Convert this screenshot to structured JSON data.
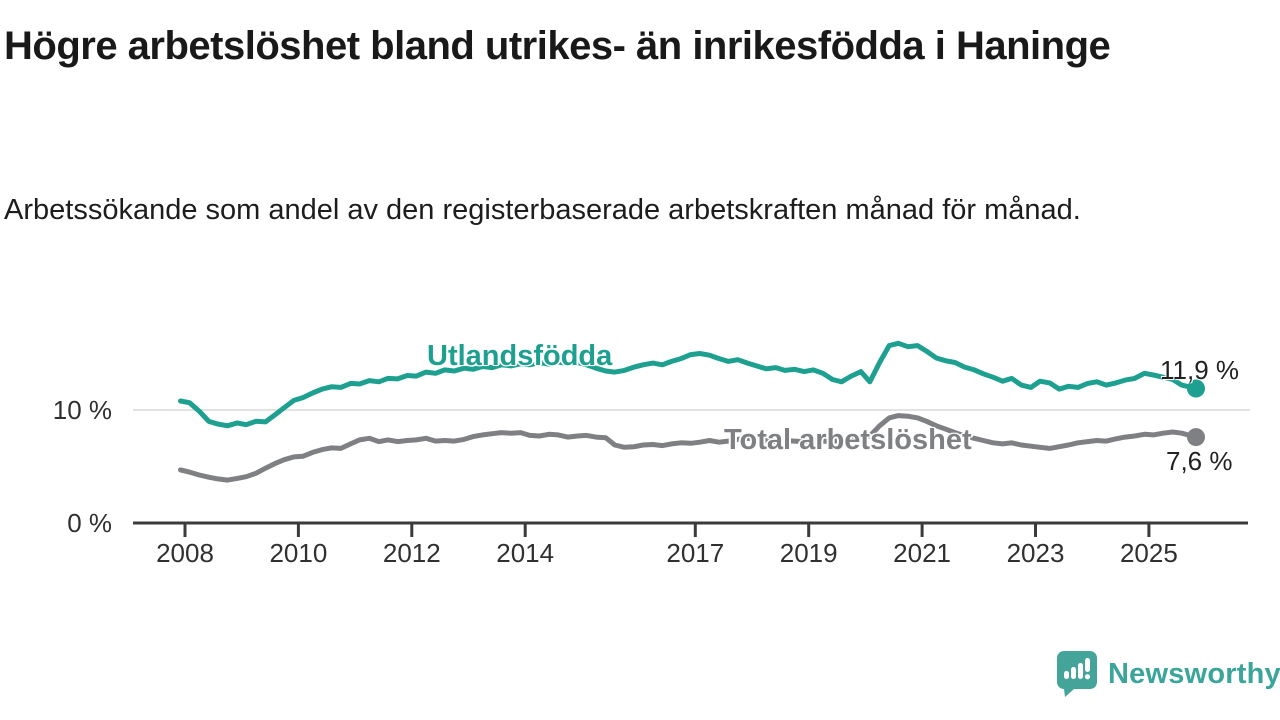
{
  "header": {
    "title": "Högre arbetslöshet bland utrikes- än inrikesfödda i Haninge",
    "subtitle": "Arbetssökande som andel av den registerbaserade arbetskraften månad för månad."
  },
  "branding": {
    "logo_text": "Newsworthy",
    "logo_color": "#3ba59b",
    "logo_bubble_color": "#45a49a",
    "logo_icon": "newsworthy-speech-bubble-bar-chart-icon"
  },
  "colors": {
    "background": "#ffffff",
    "accent_teal": "#1ea091",
    "neutral_gray": "#7f8084",
    "axis": "#3b3b3b",
    "grid": "#d9d9d9",
    "tick_text": "#303030"
  },
  "chart_data": {
    "type": "line",
    "title": "Högre arbetslöshet bland utrikes- än inrikesfödda i Haninge",
    "subtitle": "Arbetssökande som andel av den registerbaserade arbetskraften månad för månad.",
    "unit": "%",
    "grid": "single horizontal gridline at 10 %",
    "legend_position": "inline labels on lines, value labels at line ends",
    "x_axis": {
      "range": [
        2007.7,
        2026.9
      ],
      "ticks": [
        {
          "t": 2008,
          "label": "2008"
        },
        {
          "t": 2010,
          "label": "2010"
        },
        {
          "t": 2012,
          "label": "2012"
        },
        {
          "t": 2014,
          "label": "2014"
        },
        {
          "t": 2017,
          "label": "2017"
        },
        {
          "t": 2019,
          "label": "2019"
        },
        {
          "t": 2021,
          "label": "2021"
        },
        {
          "t": 2023,
          "label": "2023"
        },
        {
          "t": 2025,
          "label": "2025"
        }
      ]
    },
    "y_axis": {
      "range": [
        0,
        18
      ],
      "ticks": [
        {
          "v": 0,
          "label": "0 %"
        },
        {
          "v": 10,
          "label": "10 %"
        }
      ]
    },
    "series": [
      {
        "name": "Utlandsfödda",
        "color": "#1ea091",
        "end_label": "11,9 %",
        "end_value": 11.9,
        "points": [
          [
            2007.92,
            10.8
          ],
          [
            2008.08,
            10.65
          ],
          [
            2008.25,
            9.9
          ],
          [
            2008.42,
            9.0
          ],
          [
            2008.58,
            8.75
          ],
          [
            2008.75,
            8.6
          ],
          [
            2008.92,
            8.85
          ],
          [
            2009.08,
            8.7
          ],
          [
            2009.25,
            9.0
          ],
          [
            2009.42,
            8.95
          ],
          [
            2009.58,
            9.55
          ],
          [
            2009.75,
            10.2
          ],
          [
            2009.92,
            10.85
          ],
          [
            2010.08,
            11.1
          ],
          [
            2010.25,
            11.5
          ],
          [
            2010.42,
            11.85
          ],
          [
            2010.58,
            12.05
          ],
          [
            2010.75,
            12.0
          ],
          [
            2010.92,
            12.35
          ],
          [
            2011.08,
            12.3
          ],
          [
            2011.25,
            12.6
          ],
          [
            2011.42,
            12.5
          ],
          [
            2011.58,
            12.8
          ],
          [
            2011.75,
            12.75
          ],
          [
            2011.92,
            13.05
          ],
          [
            2012.08,
            13.0
          ],
          [
            2012.25,
            13.35
          ],
          [
            2012.42,
            13.25
          ],
          [
            2012.58,
            13.55
          ],
          [
            2012.75,
            13.45
          ],
          [
            2012.92,
            13.7
          ],
          [
            2013.08,
            13.6
          ],
          [
            2013.25,
            13.85
          ],
          [
            2013.42,
            13.75
          ],
          [
            2013.58,
            14.0
          ],
          [
            2013.75,
            13.9
          ],
          [
            2013.92,
            14.1
          ],
          [
            2014.08,
            14.0
          ],
          [
            2014.25,
            14.2
          ],
          [
            2014.42,
            14.05
          ],
          [
            2014.58,
            14.25
          ],
          [
            2014.75,
            14.1
          ],
          [
            2014.92,
            14.2
          ],
          [
            2015.08,
            14.0
          ],
          [
            2015.25,
            13.7
          ],
          [
            2015.42,
            13.45
          ],
          [
            2015.58,
            13.35
          ],
          [
            2015.75,
            13.5
          ],
          [
            2015.92,
            13.8
          ],
          [
            2016.08,
            14.0
          ],
          [
            2016.25,
            14.15
          ],
          [
            2016.42,
            14.0
          ],
          [
            2016.58,
            14.3
          ],
          [
            2016.75,
            14.55
          ],
          [
            2016.92,
            14.9
          ],
          [
            2017.08,
            15.0
          ],
          [
            2017.25,
            14.85
          ],
          [
            2017.42,
            14.55
          ],
          [
            2017.58,
            14.3
          ],
          [
            2017.75,
            14.45
          ],
          [
            2017.92,
            14.15
          ],
          [
            2018.08,
            13.9
          ],
          [
            2018.25,
            13.65
          ],
          [
            2018.42,
            13.75
          ],
          [
            2018.58,
            13.5
          ],
          [
            2018.75,
            13.6
          ],
          [
            2018.92,
            13.4
          ],
          [
            2019.08,
            13.55
          ],
          [
            2019.25,
            13.25
          ],
          [
            2019.42,
            12.7
          ],
          [
            2019.58,
            12.5
          ],
          [
            2019.75,
            13.0
          ],
          [
            2019.92,
            13.4
          ],
          [
            2020.08,
            12.5
          ],
          [
            2020.25,
            14.2
          ],
          [
            2020.42,
            15.7
          ],
          [
            2020.58,
            15.9
          ],
          [
            2020.75,
            15.6
          ],
          [
            2020.92,
            15.7
          ],
          [
            2021.08,
            15.2
          ],
          [
            2021.25,
            14.6
          ],
          [
            2021.42,
            14.35
          ],
          [
            2021.58,
            14.2
          ],
          [
            2021.75,
            13.8
          ],
          [
            2021.92,
            13.55
          ],
          [
            2022.08,
            13.2
          ],
          [
            2022.25,
            12.9
          ],
          [
            2022.42,
            12.55
          ],
          [
            2022.58,
            12.8
          ],
          [
            2022.75,
            12.2
          ],
          [
            2022.92,
            12.0
          ],
          [
            2023.08,
            12.55
          ],
          [
            2023.25,
            12.4
          ],
          [
            2023.42,
            11.85
          ],
          [
            2023.58,
            12.1
          ],
          [
            2023.75,
            12.0
          ],
          [
            2023.92,
            12.35
          ],
          [
            2024.08,
            12.5
          ],
          [
            2024.25,
            12.2
          ],
          [
            2024.42,
            12.4
          ],
          [
            2024.58,
            12.65
          ],
          [
            2024.75,
            12.8
          ],
          [
            2024.92,
            13.25
          ],
          [
            2025.08,
            13.1
          ],
          [
            2025.25,
            12.9
          ],
          [
            2025.42,
            12.7
          ],
          [
            2025.58,
            12.2
          ],
          [
            2025.83,
            11.9
          ]
        ]
      },
      {
        "name": "Total arbetslöshet",
        "color": "#7f8084",
        "end_label": "7,6 %",
        "end_value": 7.6,
        "points": [
          [
            2007.92,
            4.7
          ],
          [
            2008.08,
            4.5
          ],
          [
            2008.25,
            4.25
          ],
          [
            2008.42,
            4.05
          ],
          [
            2008.58,
            3.9
          ],
          [
            2008.75,
            3.8
          ],
          [
            2008.92,
            3.95
          ],
          [
            2009.08,
            4.1
          ],
          [
            2009.25,
            4.4
          ],
          [
            2009.42,
            4.85
          ],
          [
            2009.58,
            5.25
          ],
          [
            2009.75,
            5.6
          ],
          [
            2009.92,
            5.85
          ],
          [
            2010.08,
            5.9
          ],
          [
            2010.25,
            6.25
          ],
          [
            2010.42,
            6.5
          ],
          [
            2010.58,
            6.65
          ],
          [
            2010.75,
            6.6
          ],
          [
            2010.92,
            7.0
          ],
          [
            2011.08,
            7.35
          ],
          [
            2011.25,
            7.5
          ],
          [
            2011.42,
            7.2
          ],
          [
            2011.58,
            7.35
          ],
          [
            2011.75,
            7.2
          ],
          [
            2011.92,
            7.3
          ],
          [
            2012.08,
            7.35
          ],
          [
            2012.25,
            7.5
          ],
          [
            2012.42,
            7.25
          ],
          [
            2012.58,
            7.3
          ],
          [
            2012.75,
            7.25
          ],
          [
            2012.92,
            7.4
          ],
          [
            2013.08,
            7.65
          ],
          [
            2013.25,
            7.8
          ],
          [
            2013.42,
            7.9
          ],
          [
            2013.58,
            8.0
          ],
          [
            2013.75,
            7.95
          ],
          [
            2013.92,
            8.0
          ],
          [
            2014.08,
            7.75
          ],
          [
            2014.25,
            7.7
          ],
          [
            2014.42,
            7.85
          ],
          [
            2014.58,
            7.8
          ],
          [
            2014.75,
            7.6
          ],
          [
            2014.92,
            7.7
          ],
          [
            2015.08,
            7.75
          ],
          [
            2015.25,
            7.6
          ],
          [
            2015.42,
            7.55
          ],
          [
            2015.58,
            6.9
          ],
          [
            2015.75,
            6.7
          ],
          [
            2015.92,
            6.75
          ],
          [
            2016.08,
            6.9
          ],
          [
            2016.25,
            6.95
          ],
          [
            2016.42,
            6.85
          ],
          [
            2016.58,
            7.0
          ],
          [
            2016.75,
            7.1
          ],
          [
            2016.92,
            7.05
          ],
          [
            2017.08,
            7.15
          ],
          [
            2017.25,
            7.3
          ],
          [
            2017.42,
            7.15
          ],
          [
            2017.58,
            7.25
          ],
          [
            2017.75,
            7.4
          ],
          [
            2017.92,
            7.5
          ],
          [
            2018.08,
            7.4
          ],
          [
            2018.25,
            7.3
          ],
          [
            2018.42,
            7.2
          ],
          [
            2018.58,
            7.3
          ],
          [
            2018.75,
            7.25
          ],
          [
            2018.92,
            7.2
          ],
          [
            2019.08,
            7.3
          ],
          [
            2019.25,
            7.25
          ],
          [
            2019.42,
            7.2
          ],
          [
            2019.58,
            7.35
          ],
          [
            2019.75,
            7.5
          ],
          [
            2019.92,
            7.6
          ],
          [
            2020.08,
            7.7
          ],
          [
            2020.25,
            8.6
          ],
          [
            2020.42,
            9.3
          ],
          [
            2020.58,
            9.5
          ],
          [
            2020.75,
            9.45
          ],
          [
            2020.92,
            9.3
          ],
          [
            2021.08,
            9.0
          ],
          [
            2021.25,
            8.6
          ],
          [
            2021.42,
            8.3
          ],
          [
            2021.58,
            8.0
          ],
          [
            2021.75,
            7.7
          ],
          [
            2021.92,
            7.5
          ],
          [
            2022.08,
            7.3
          ],
          [
            2022.25,
            7.1
          ],
          [
            2022.42,
            7.0
          ],
          [
            2022.58,
            7.1
          ],
          [
            2022.75,
            6.9
          ],
          [
            2022.92,
            6.8
          ],
          [
            2023.08,
            6.7
          ],
          [
            2023.25,
            6.6
          ],
          [
            2023.42,
            6.75
          ],
          [
            2023.58,
            6.9
          ],
          [
            2023.75,
            7.1
          ],
          [
            2023.92,
            7.2
          ],
          [
            2024.08,
            7.3
          ],
          [
            2024.25,
            7.25
          ],
          [
            2024.42,
            7.45
          ],
          [
            2024.58,
            7.6
          ],
          [
            2024.75,
            7.7
          ],
          [
            2024.92,
            7.85
          ],
          [
            2025.08,
            7.8
          ],
          [
            2025.25,
            7.95
          ],
          [
            2025.42,
            8.05
          ],
          [
            2025.58,
            7.95
          ],
          [
            2025.83,
            7.6
          ]
        ]
      }
    ]
  }
}
